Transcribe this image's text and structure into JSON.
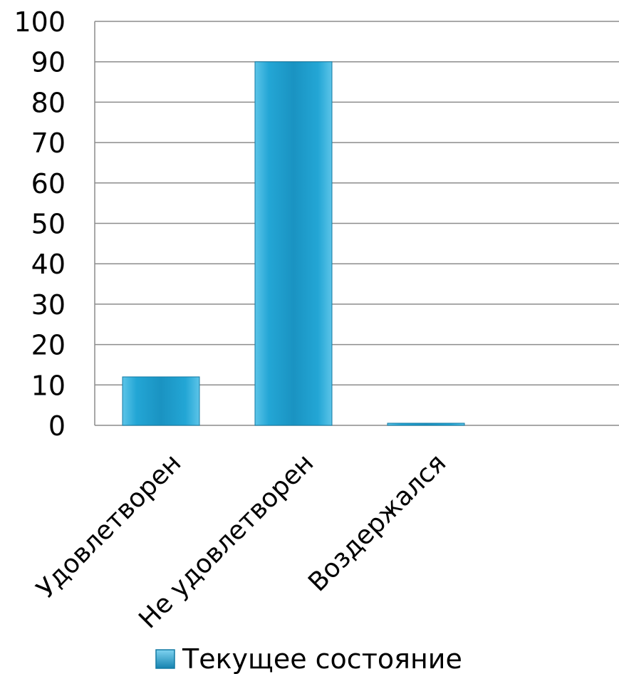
{
  "chart_data": {
    "type": "bar",
    "categories": [
      "Удовлетворен",
      "Не удовлетворен",
      "Воздержался"
    ],
    "series": [
      {
        "name": "Текущее состояние",
        "values": [
          12,
          90,
          0.5
        ]
      }
    ],
    "yticks": [
      "0",
      "10",
      "20",
      "30",
      "40",
      "50",
      "60",
      "70",
      "80",
      "90",
      "100"
    ],
    "ylim": [
      0,
      100
    ],
    "grid": true,
    "legend": "bottom",
    "colors": {
      "bar": "#1f9fcc",
      "bar_light": "#5cc4e8",
      "bar_dark": "#137aa3",
      "grid": "#8c8c8c"
    }
  }
}
